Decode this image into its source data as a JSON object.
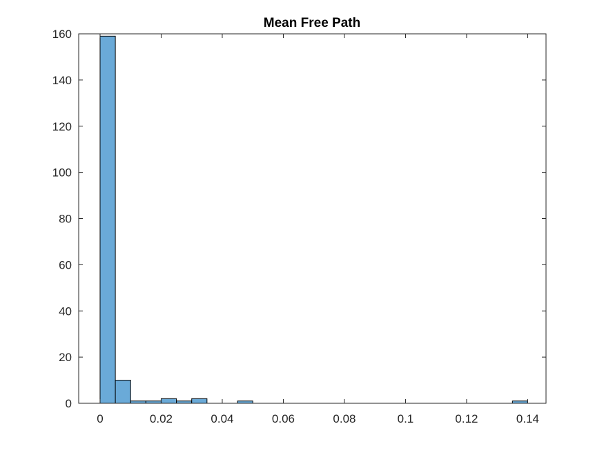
{
  "chart_data": {
    "type": "bar",
    "title": "Mean Free Path",
    "xlabel": "",
    "ylabel": "",
    "bin_edges": [
      0,
      0.005,
      0.01,
      0.015,
      0.02,
      0.025,
      0.03,
      0.035,
      0.04,
      0.045,
      0.05,
      0.055,
      0.06,
      0.065,
      0.07,
      0.075,
      0.08,
      0.085,
      0.09,
      0.095,
      0.1,
      0.105,
      0.11,
      0.115,
      0.12,
      0.125,
      0.13,
      0.135,
      0.14
    ],
    "values": [
      159,
      10,
      1,
      1,
      2,
      1,
      2,
      0,
      0,
      1,
      0,
      0,
      0,
      0,
      0,
      0,
      0,
      0,
      0,
      0,
      0,
      0,
      0,
      0,
      0,
      0,
      0,
      1
    ],
    "xlim": [
      -0.007,
      0.146
    ],
    "ylim": [
      0,
      160
    ],
    "xticks": [
      0,
      0.02,
      0.04,
      0.06,
      0.08,
      0.1,
      0.12,
      0.14
    ],
    "xtick_labels": [
      "0",
      "0.02",
      "0.04",
      "0.06",
      "0.08",
      "0.1",
      "0.12",
      "0.14"
    ],
    "yticks": [
      0,
      20,
      40,
      60,
      80,
      100,
      120,
      140,
      160
    ],
    "ytick_labels": [
      "0",
      "20",
      "40",
      "60",
      "80",
      "100",
      "120",
      "140",
      "160"
    ],
    "grid": false,
    "bar_color": "#6aaad8",
    "bar_edge_color": "#000000",
    "axis_color": "#262626"
  }
}
